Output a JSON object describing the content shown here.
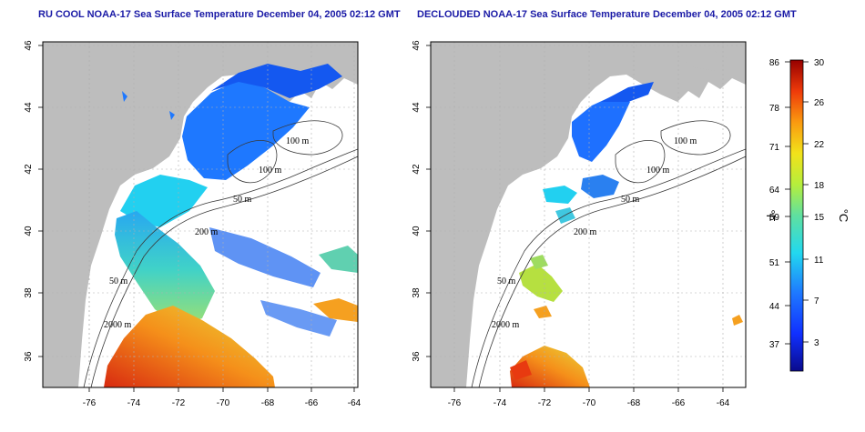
{
  "titles": {
    "left": "RU COOL NOAA-17 Sea Surface Temperature December 04, 2005 02:12 GMT",
    "right": "DECLOUDED NOAA-17 Sea Surface Temperature December 04, 2005 02:12 GMT"
  },
  "axes": {
    "x_ticks": [
      "-76",
      "-74",
      "-72",
      "-70",
      "-68",
      "-66",
      "-64"
    ],
    "y_ticks": [
      "46",
      "44",
      "42",
      "40",
      "38",
      "36"
    ]
  },
  "contours": {
    "labels": [
      "100 m",
      "100 m",
      "50 m",
      "200 m",
      "50 m",
      "2000 m"
    ]
  },
  "colorbar": {
    "fahrenheit_ticks": [
      "86",
      "78",
      "71",
      "64",
      "59",
      "51",
      "44",
      "37"
    ],
    "celsius_ticks": [
      "30",
      "26",
      "22",
      "18",
      "15",
      "11",
      "7",
      "3"
    ],
    "fahrenheit_unit": "°F",
    "celsius_unit": "°C"
  },
  "colors": {
    "title": "#1a1aa6",
    "land": "#bdbdbd",
    "grid": "#b0b0b0"
  }
}
